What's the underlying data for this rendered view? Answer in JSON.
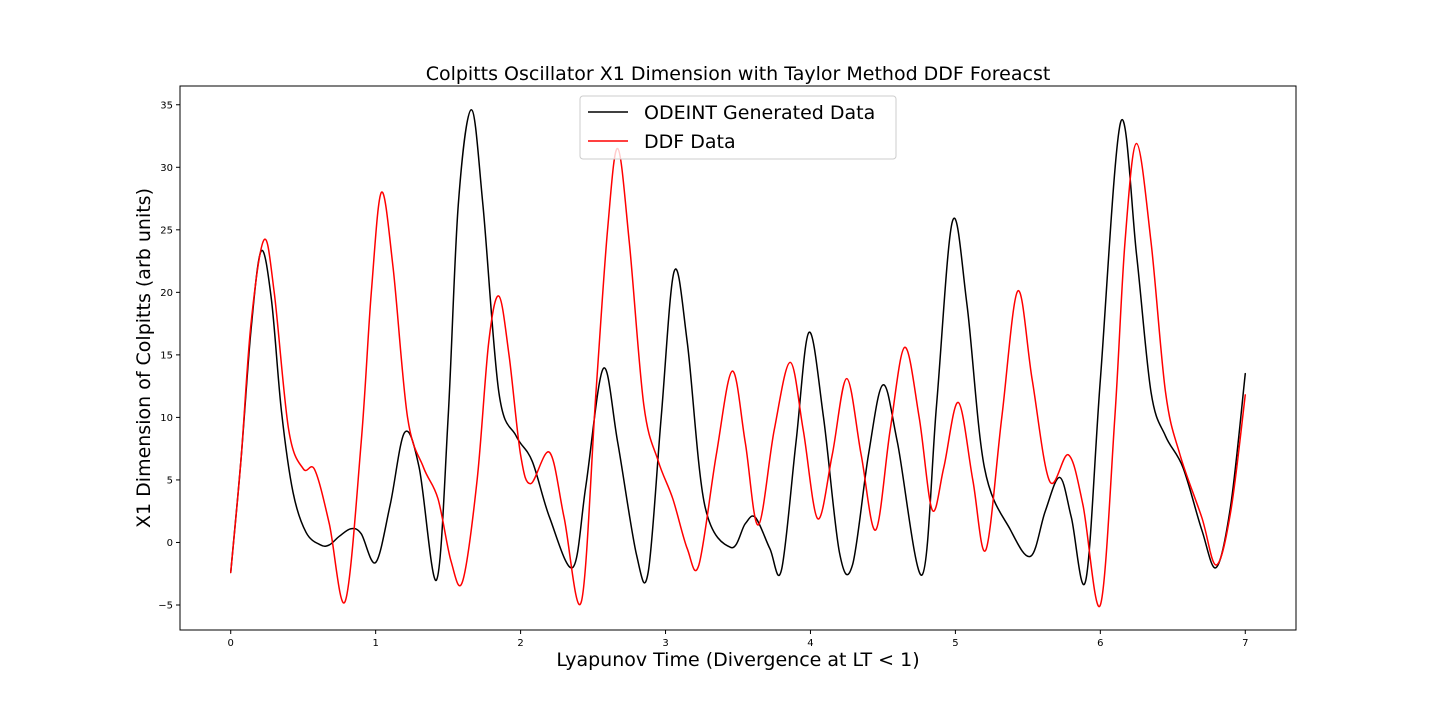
{
  "chart_data": {
    "type": "line",
    "title": "Colpitts Oscillator X1 Dimension with Taylor Method DDF Foreacst",
    "xlabel": "Lyapunov Time (Divergence at LT < 1)",
    "ylabel": "X1 Dimension of Colpitts (arb units)",
    "xlim": [
      -0.35,
      7.35
    ],
    "ylim": [
      -7.0,
      36.5
    ],
    "xticks": [
      0,
      1,
      2,
      3,
      4,
      5,
      6,
      7
    ],
    "xtick_labels": [
      "0",
      "1",
      "2",
      "3",
      "4",
      "5",
      "6",
      "7"
    ],
    "yticks": [
      -5,
      0,
      5,
      10,
      15,
      20,
      25,
      30,
      35
    ],
    "ytick_labels": [
      "−5",
      "0",
      "5",
      "10",
      "15",
      "20",
      "25",
      "30",
      "35"
    ],
    "grid": false,
    "legend_position": "top-center",
    "series": [
      {
        "name": "ODEINT Generated Data",
        "color": "#000000",
        "points": [
          [
            0.0,
            -2.4
          ],
          [
            0.07,
            6.5
          ],
          [
            0.14,
            17.0
          ],
          [
            0.21,
            23.3
          ],
          [
            0.28,
            19.5
          ],
          [
            0.35,
            10.5
          ],
          [
            0.43,
            4.0
          ],
          [
            0.52,
            0.8
          ],
          [
            0.62,
            -0.2
          ],
          [
            0.68,
            -0.2
          ],
          [
            0.75,
            0.5
          ],
          [
            0.83,
            1.1
          ],
          [
            0.9,
            0.7
          ],
          [
            1.0,
            -1.6
          ],
          [
            1.1,
            3.0
          ],
          [
            1.2,
            8.8
          ],
          [
            1.3,
            6.0
          ],
          [
            1.42,
            -3.0
          ],
          [
            1.5,
            10.0
          ],
          [
            1.57,
            27.0
          ],
          [
            1.66,
            34.6
          ],
          [
            1.74,
            27.0
          ],
          [
            1.85,
            12.0
          ],
          [
            1.97,
            8.5
          ],
          [
            2.08,
            6.5
          ],
          [
            2.2,
            2.0
          ],
          [
            2.36,
            -2.0
          ],
          [
            2.45,
            4.5
          ],
          [
            2.57,
            13.9
          ],
          [
            2.67,
            8.0
          ],
          [
            2.8,
            -1.0
          ],
          [
            2.88,
            -2.4
          ],
          [
            2.97,
            10.0
          ],
          [
            3.06,
            21.7
          ],
          [
            3.15,
            16.0
          ],
          [
            3.27,
            3.0
          ],
          [
            3.45,
            -0.4
          ],
          [
            3.55,
            1.5
          ],
          [
            3.62,
            2.0
          ],
          [
            3.72,
            -0.5
          ],
          [
            3.8,
            -2.2
          ],
          [
            3.9,
            8.0
          ],
          [
            3.99,
            16.8
          ],
          [
            4.09,
            10.0
          ],
          [
            4.2,
            -0.8
          ],
          [
            4.29,
            -1.8
          ],
          [
            4.4,
            7.0
          ],
          [
            4.5,
            12.6
          ],
          [
            4.6,
            8.0
          ],
          [
            4.77,
            -2.6
          ],
          [
            4.87,
            11.0
          ],
          [
            4.98,
            25.7
          ],
          [
            5.08,
            19.0
          ],
          [
            5.2,
            6.0
          ],
          [
            5.38,
            1.0
          ],
          [
            5.52,
            -1.1
          ],
          [
            5.62,
            2.5
          ],
          [
            5.72,
            5.2
          ],
          [
            5.8,
            2.0
          ],
          [
            5.9,
            -3.0
          ],
          [
            6.0,
            13.0
          ],
          [
            6.14,
            33.6
          ],
          [
            6.25,
            23.0
          ],
          [
            6.35,
            12.0
          ],
          [
            6.45,
            8.5
          ],
          [
            6.57,
            6.0
          ],
          [
            6.7,
            1.0
          ],
          [
            6.8,
            -2.0
          ],
          [
            6.9,
            3.0
          ],
          [
            7.0,
            13.5
          ]
        ]
      },
      {
        "name": "DDF Data",
        "color": "#ff0000",
        "points": [
          [
            0.0,
            -2.4
          ],
          [
            0.07,
            6.5
          ],
          [
            0.14,
            17.5
          ],
          [
            0.23,
            24.2
          ],
          [
            0.3,
            20.0
          ],
          [
            0.4,
            9.0
          ],
          [
            0.5,
            5.9
          ],
          [
            0.58,
            5.8
          ],
          [
            0.68,
            1.5
          ],
          [
            0.79,
            -4.7
          ],
          [
            0.9,
            8.0
          ],
          [
            0.97,
            20.0
          ],
          [
            1.04,
            28.0
          ],
          [
            1.12,
            22.0
          ],
          [
            1.22,
            10.0
          ],
          [
            1.33,
            6.0
          ],
          [
            1.43,
            3.5
          ],
          [
            1.52,
            -1.5
          ],
          [
            1.6,
            -3.1
          ],
          [
            1.7,
            5.0
          ],
          [
            1.78,
            16.0
          ],
          [
            1.85,
            19.7
          ],
          [
            1.92,
            15.0
          ],
          [
            2.0,
            7.0
          ],
          [
            2.07,
            4.7
          ],
          [
            2.2,
            7.2
          ],
          [
            2.3,
            2.0
          ],
          [
            2.42,
            -4.7
          ],
          [
            2.52,
            12.0
          ],
          [
            2.6,
            25.0
          ],
          [
            2.67,
            31.5
          ],
          [
            2.75,
            24.0
          ],
          [
            2.85,
            11.0
          ],
          [
            2.95,
            6.5
          ],
          [
            3.05,
            3.5
          ],
          [
            3.15,
            -0.5
          ],
          [
            3.23,
            -1.8
          ],
          [
            3.35,
            7.0
          ],
          [
            3.46,
            13.7
          ],
          [
            3.55,
            8.0
          ],
          [
            3.64,
            1.4
          ],
          [
            3.75,
            9.0
          ],
          [
            3.86,
            14.4
          ],
          [
            3.95,
            9.0
          ],
          [
            4.05,
            1.9
          ],
          [
            4.15,
            7.0
          ],
          [
            4.25,
            13.1
          ],
          [
            4.35,
            7.0
          ],
          [
            4.45,
            1.0
          ],
          [
            4.55,
            9.0
          ],
          [
            4.65,
            15.6
          ],
          [
            4.75,
            10.0
          ],
          [
            4.84,
            2.6
          ],
          [
            4.92,
            6.0
          ],
          [
            5.02,
            11.2
          ],
          [
            5.12,
            5.0
          ],
          [
            5.21,
            -0.6
          ],
          [
            5.32,
            10.0
          ],
          [
            5.43,
            20.1
          ],
          [
            5.53,
            13.0
          ],
          [
            5.65,
            4.9
          ],
          [
            5.78,
            7.0
          ],
          [
            5.88,
            3.0
          ],
          [
            6.0,
            -5.0
          ],
          [
            6.1,
            10.0
          ],
          [
            6.17,
            24.0
          ],
          [
            6.25,
            31.9
          ],
          [
            6.35,
            24.0
          ],
          [
            6.45,
            12.0
          ],
          [
            6.55,
            7.0
          ],
          [
            6.7,
            2.0
          ],
          [
            6.8,
            -1.8
          ],
          [
            6.9,
            2.5
          ],
          [
            7.0,
            11.8
          ]
        ]
      }
    ]
  }
}
